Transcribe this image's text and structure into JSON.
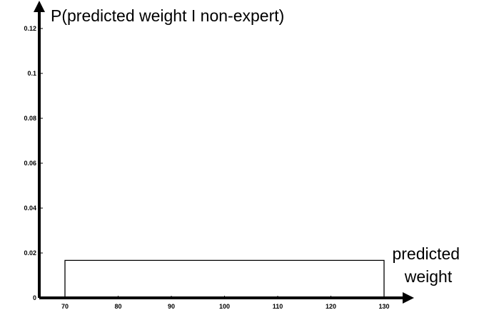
{
  "chart_data": {
    "type": "area",
    "title": "",
    "ylabel": "P(predicted weight I non-expert)",
    "xlabel_lines": [
      "predicted",
      "weight"
    ],
    "xlim": [
      65,
      135
    ],
    "ylim": [
      0,
      0.125
    ],
    "x_ticks": [
      70,
      80,
      90,
      100,
      110,
      120,
      130
    ],
    "y_ticks": [
      0,
      0.02,
      0.04,
      0.06,
      0.08,
      0.1,
      0.12
    ],
    "y_tick_labels": [
      "0",
      "0.02",
      "0.04",
      "0.06",
      "0.08",
      "0.1",
      "0.12"
    ],
    "series": [
      {
        "distribution": "uniform",
        "x_start": 70,
        "x_end": 130,
        "density": 0.0167,
        "stroke": "#000000",
        "fill": "none"
      }
    ],
    "grid": false,
    "legend": "none"
  }
}
